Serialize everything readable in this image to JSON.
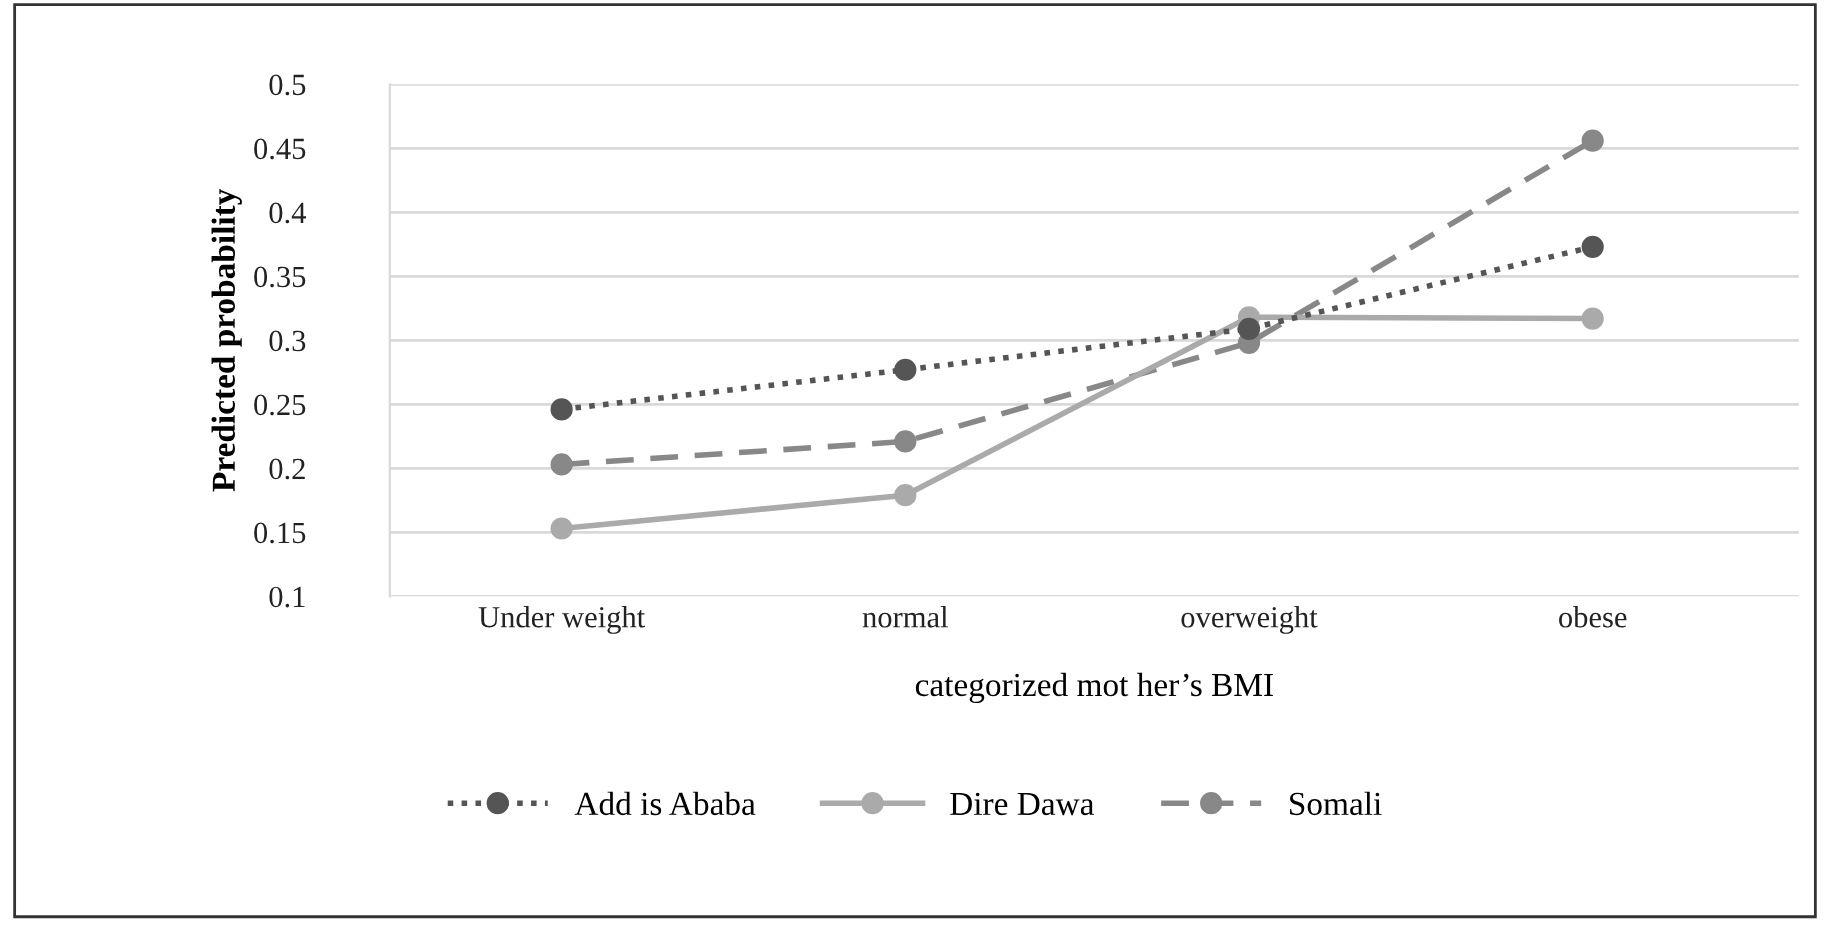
{
  "chart_data": {
    "type": "line",
    "xlabel": "categorized mot her’s BMI",
    "ylabel": "Predicted probability",
    "categories": [
      "Under weight",
      "normal",
      "overweight",
      "obese"
    ],
    "series": [
      {
        "name": "Add is Ababa",
        "color": "#555555",
        "line_style": "dotted",
        "values": [
          0.246,
          0.277,
          0.309,
          0.373
        ]
      },
      {
        "name": "Dire Dawa",
        "color": "#aaaaaa",
        "line_style": "solid",
        "values": [
          0.153,
          0.179,
          0.318,
          0.317
        ]
      },
      {
        "name": "Somali",
        "color": "#888888",
        "line_style": "dashed",
        "values": [
          0.203,
          0.221,
          0.298,
          0.456
        ]
      }
    ],
    "ylim": [
      0.1,
      0.5
    ],
    "yticks": [
      0.1,
      0.15,
      0.2,
      0.25,
      0.3,
      0.35,
      0.4,
      0.45,
      0.5
    ],
    "grid": "y",
    "legend": "bottom",
    "marker": "circle"
  }
}
